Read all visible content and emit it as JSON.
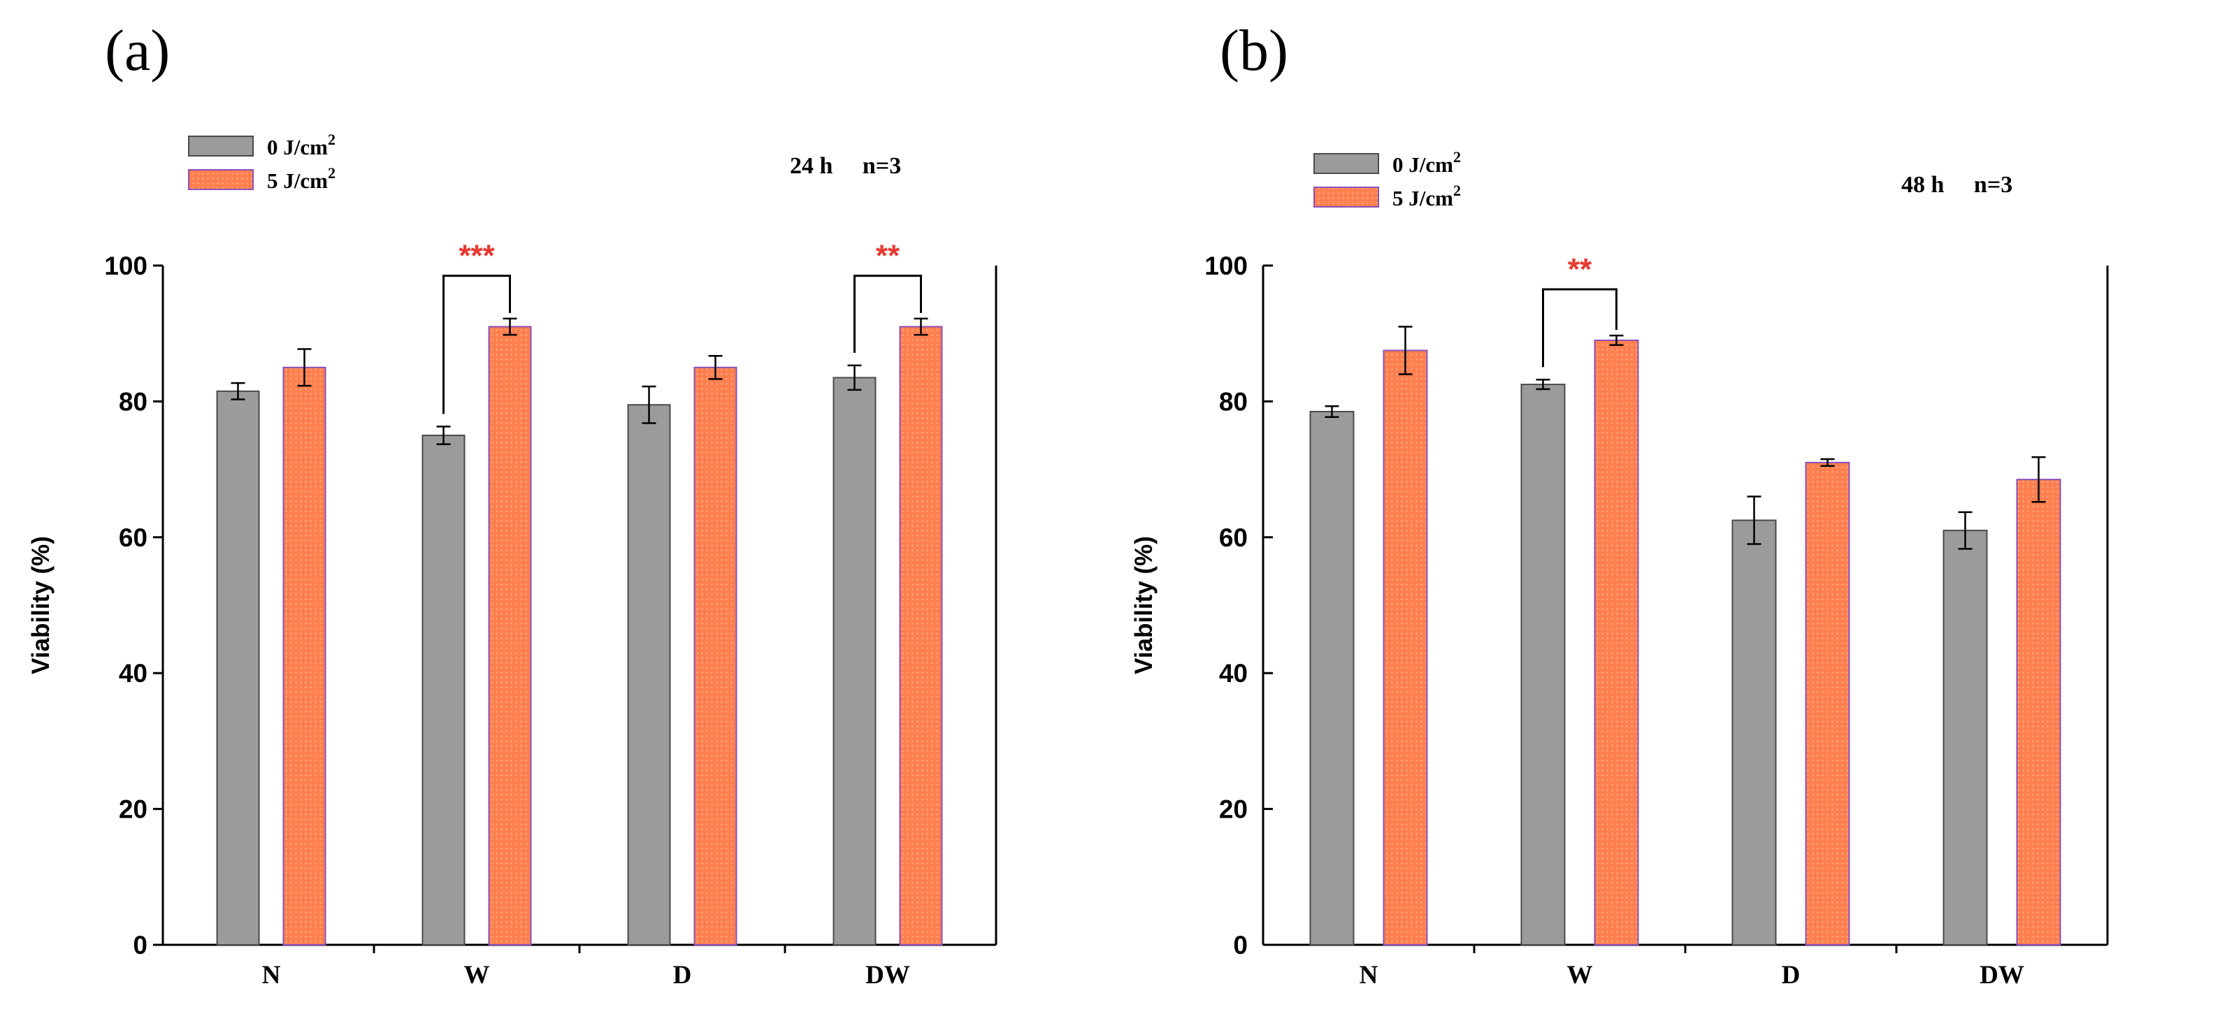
{
  "colors": {
    "control_fill": "#9b9b9b",
    "control_stroke": "#4a4a4a",
    "treated_fill": "#ff7f4f",
    "treated_stroke": "#8a4fb8",
    "significance": "#e8382f",
    "axis": "#000000"
  },
  "chart_data": [
    {
      "panel_label": "(a)",
      "type": "bar",
      "title": "",
      "condition_text": "24 h     n=3",
      "xlabel": "",
      "ylabel": "Viability (%)",
      "ylim": [
        0,
        100
      ],
      "yticks": [
        0,
        20,
        40,
        60,
        80,
        100
      ],
      "categories": [
        "N",
        "W",
        "D",
        "DW"
      ],
      "legend": {
        "placement": "top-left",
        "entries": [
          {
            "base": "0 J/cm",
            "sup": "2"
          },
          {
            "base": "5 J/cm",
            "sup": "2"
          }
        ]
      },
      "series": [
        {
          "name": "0 J/cm2",
          "values": [
            81.5,
            75.0,
            79.5,
            83.5
          ],
          "errors": [
            1.2,
            1.3,
            2.7,
            1.8
          ]
        },
        {
          "name": "5 J/cm2",
          "values": [
            85.0,
            91.0,
            85.0,
            91.0
          ],
          "errors": [
            2.7,
            1.2,
            1.7,
            1.2
          ]
        }
      ],
      "significance": [
        {
          "category": "W",
          "label": "***",
          "bracket_y": 98.5
        },
        {
          "category": "DW",
          "label": "**",
          "bracket_y": 98.5
        }
      ]
    },
    {
      "panel_label": "(b)",
      "type": "bar",
      "title": "",
      "condition_text": "48 h     n=3",
      "xlabel": "",
      "ylabel": "Viability (%)",
      "ylim": [
        0,
        100
      ],
      "yticks": [
        0,
        20,
        40,
        60,
        80,
        100
      ],
      "categories": [
        "N",
        "W",
        "D",
        "DW"
      ],
      "legend": {
        "placement": "top-left",
        "entries": [
          {
            "base": "0 J/cm",
            "sup": "2"
          },
          {
            "base": "5 J/cm",
            "sup": "2"
          }
        ]
      },
      "series": [
        {
          "name": "0 J/cm2",
          "values": [
            78.5,
            82.5,
            62.5,
            61.0
          ],
          "errors": [
            0.8,
            0.7,
            3.5,
            2.7
          ]
        },
        {
          "name": "5 J/cm2",
          "values": [
            87.5,
            89.0,
            71.0,
            68.5
          ],
          "errors": [
            3.5,
            0.7,
            0.5,
            3.3
          ]
        }
      ],
      "significance": [
        {
          "category": "W",
          "label": "**",
          "bracket_y": 96.5
        }
      ]
    }
  ]
}
